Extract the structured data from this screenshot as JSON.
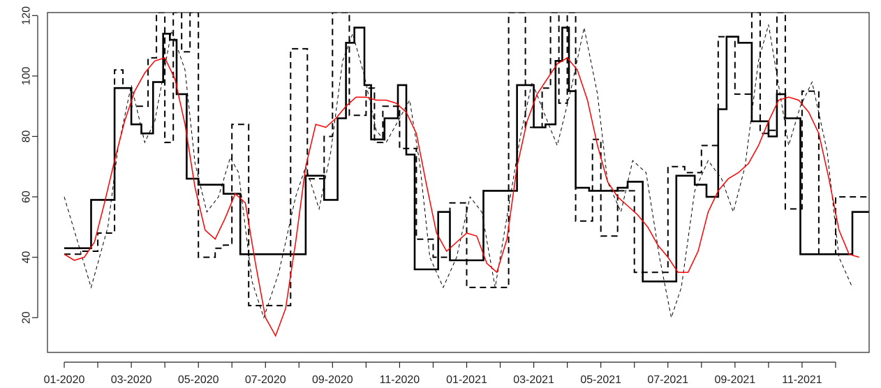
{
  "chart_data": {
    "type": "line",
    "title": "",
    "xlabel": "",
    "ylabel": "",
    "xlim": [
      0.5,
      25
    ],
    "ylim": [
      8.5,
      121
    ],
    "grid": false,
    "legend": "none",
    "x_ticks": [
      {
        "x": 1,
        "label": ""
      },
      {
        "x": 2,
        "label": ""
      },
      {
        "x": 3,
        "label": ""
      },
      {
        "x": 4,
        "label": ""
      },
      {
        "x": 5,
        "label": ""
      },
      {
        "x": 6,
        "label": ""
      },
      {
        "x": 7,
        "label": ""
      },
      {
        "x": 8,
        "label": ""
      },
      {
        "x": 9,
        "label": ""
      },
      {
        "x": 10,
        "label": ""
      },
      {
        "x": 11,
        "label": ""
      },
      {
        "x": 12,
        "label": ""
      },
      {
        "x": 13,
        "label": ""
      },
      {
        "x": 14,
        "label": ""
      },
      {
        "x": 15,
        "label": ""
      },
      {
        "x": 16,
        "label": ""
      },
      {
        "x": 17,
        "label": ""
      },
      {
        "x": 18,
        "label": ""
      },
      {
        "x": 19,
        "label": ""
      },
      {
        "x": 20,
        "label": ""
      },
      {
        "x": 21,
        "label": ""
      },
      {
        "x": 22,
        "label": ""
      },
      {
        "x": 23,
        "label": ""
      },
      {
        "x": 24,
        "label": ""
      }
    ],
    "x_tick_labels": [
      {
        "x": 1,
        "label": "01-2020"
      },
      {
        "x": 3,
        "label": "03-2020"
      },
      {
        "x": 5,
        "label": "05-2020"
      },
      {
        "x": 7,
        "label": "07-2020"
      },
      {
        "x": 9,
        "label": "09-2020"
      },
      {
        "x": 11,
        "label": "11-2020"
      },
      {
        "x": 13,
        "label": "01-2021"
      },
      {
        "x": 15,
        "label": "03-2021"
      },
      {
        "x": 17,
        "label": "05-2021"
      },
      {
        "x": 19,
        "label": "07-2021"
      },
      {
        "x": 21,
        "label": "09-2021"
      },
      {
        "x": 23,
        "label": "11-2021"
      }
    ],
    "y_ticks": [
      20,
      40,
      60,
      80,
      100,
      120
    ],
    "colors": {
      "step_solid": "#000000",
      "step_dashed": "#000000",
      "thin_dashed": "#000000",
      "smooth": "#ff0000"
    },
    "series": [
      {
        "style": "step-solid",
        "x": [
          1.0,
          1.8,
          2.5,
          3.0,
          3.3,
          3.65,
          3.95,
          4.15,
          4.35,
          4.65,
          5.0,
          5.5,
          5.75,
          6.25,
          7.0,
          7.5,
          8.2,
          8.75,
          9.15,
          9.4,
          9.65,
          9.95,
          10.15,
          10.55,
          10.95,
          11.2,
          11.45,
          11.75,
          12.15,
          12.5,
          12.95,
          13.5,
          14.5,
          15.0,
          15.35,
          15.65,
          15.85,
          16.05,
          16.25,
          16.65,
          17.0,
          17.5,
          17.8,
          18.25,
          18.75,
          19.25,
          19.8,
          20.15,
          20.5,
          20.75,
          21.1,
          21.5,
          22.0,
          22.25,
          22.5,
          22.95,
          23.5,
          24.5
        ],
        "y": [
          43,
          59,
          96,
          84,
          81,
          98,
          114,
          112,
          94,
          66,
          64,
          64,
          61,
          41,
          41,
          41,
          67,
          59,
          86,
          111,
          116,
          97,
          79,
          86,
          97,
          74,
          36,
          36,
          55,
          39,
          39,
          62,
          97,
          83,
          84,
          105,
          116,
          95,
          63,
          62,
          62,
          63,
          65,
          32,
          32,
          67,
          64,
          60,
          89,
          113,
          111,
          85,
          80,
          94,
          86,
          41,
          41,
          55
        ]
      },
      {
        "style": "step-dashed",
        "x": [
          1.0,
          1.5,
          2.0,
          2.5,
          2.75,
          3.0,
          3.5,
          3.75,
          4.0,
          4.25,
          4.5,
          4.75,
          5.0,
          5.25,
          5.5,
          5.75,
          6.0,
          6.25,
          6.5,
          6.75,
          7.0,
          7.5,
          7.75,
          8.0,
          8.25,
          8.5,
          8.75,
          9.0,
          9.25,
          9.5,
          9.75,
          10.0,
          10.25,
          10.5,
          10.75,
          11.0,
          11.25,
          11.5,
          11.75,
          12.0,
          12.25,
          12.5,
          12.75,
          13.0,
          13.5,
          14.0,
          14.25,
          14.5,
          14.75,
          15.0,
          15.25,
          15.5,
          15.75,
          16.0,
          16.25,
          16.5,
          16.75,
          17.0,
          17.25,
          17.5,
          17.75,
          18.0,
          18.25,
          18.5,
          18.75,
          19.0,
          19.25,
          19.5,
          19.75,
          20.0,
          20.25,
          20.5,
          20.75,
          21.0,
          21.25,
          21.5,
          21.75,
          22.0,
          22.25,
          22.5,
          22.75,
          23.0,
          23.25,
          23.5,
          23.75,
          24.0,
          24.25,
          24.5
        ],
        "y": [
          41,
          42,
          48,
          102,
          96,
          90,
          106,
          121,
          78,
          121,
          108,
          121,
          40,
          40,
          43,
          44,
          84,
          84,
          24,
          24,
          24,
          24,
          109,
          109,
          66,
          66,
          80,
          121,
          121,
          87,
          87,
          96,
          78,
          90,
          90,
          76,
          76,
          46,
          46,
          40,
          40,
          58,
          58,
          30,
          30,
          30,
          121,
          121,
          83,
          83,
          96,
          121,
          91,
          121,
          52,
          52,
          79,
          47,
          47,
          62,
          62,
          35,
          35,
          35,
          35,
          70,
          70,
          68,
          68,
          77,
          77,
          113,
          113,
          94,
          94,
          121,
          81,
          82,
          121,
          56,
          56,
          95,
          95,
          41,
          41,
          60,
          60,
          60
        ]
      },
      {
        "style": "thin-dashed",
        "x": [
          1.0,
          1.35,
          1.8,
          2.3,
          2.6,
          3.0,
          3.4,
          3.7,
          4.2,
          4.6,
          4.9,
          5.25,
          5.6,
          5.95,
          6.2,
          6.6,
          6.95,
          7.4,
          7.9,
          8.2,
          8.6,
          8.95,
          9.3,
          9.6,
          9.95,
          10.3,
          10.6,
          10.95,
          11.3,
          11.6,
          11.9,
          12.3,
          12.7,
          13.1,
          13.45,
          13.85,
          14.3,
          14.6,
          14.95,
          15.3,
          15.7,
          16.1,
          16.5,
          16.9,
          17.2,
          17.6,
          17.95,
          18.35,
          18.75,
          19.1,
          19.4,
          19.8,
          20.2,
          20.6,
          20.95,
          21.3,
          21.7,
          22.0,
          22.3,
          22.6,
          22.95,
          23.3,
          23.75,
          24.1,
          24.5
        ],
        "y": [
          60,
          47,
          30,
          50,
          76,
          97,
          78,
          85,
          115,
          102,
          71,
          55,
          60,
          73,
          68,
          32,
          20,
          35,
          60,
          70,
          56,
          75,
          105,
          114,
          100,
          82,
          78,
          85,
          92,
          71,
          40,
          30,
          40,
          60,
          55,
          30,
          60,
          80,
          98,
          88,
          77,
          95,
          116,
          94,
          65,
          55,
          72,
          68,
          40,
          20,
          30,
          62,
          72,
          66,
          55,
          70,
          105,
          117,
          97,
          77,
          90,
          98,
          75,
          40,
          30
        ]
      },
      {
        "style": "smooth",
        "x": [
          1.0,
          1.3,
          1.6,
          1.9,
          2.2,
          2.5,
          2.8,
          3.1,
          3.4,
          3.7,
          4.0,
          4.3,
          4.6,
          4.9,
          5.2,
          5.5,
          5.8,
          6.1,
          6.4,
          6.7,
          7.0,
          7.3,
          7.6,
          7.9,
          8.2,
          8.5,
          8.8,
          9.1,
          9.4,
          9.7,
          10.0,
          10.3,
          10.6,
          10.9,
          11.2,
          11.5,
          11.8,
          12.1,
          12.4,
          12.7,
          13.0,
          13.3,
          13.6,
          13.9,
          14.2,
          14.5,
          14.8,
          15.1,
          15.4,
          15.7,
          16.0,
          16.3,
          16.6,
          16.9,
          17.2,
          17.5,
          17.8,
          18.1,
          18.4,
          18.7,
          19.0,
          19.3,
          19.6,
          19.9,
          20.2,
          20.5,
          20.8,
          21.1,
          21.4,
          21.7,
          22.0,
          22.3,
          22.6,
          22.9,
          23.2,
          23.5,
          23.8,
          24.1,
          24.4,
          24.7
        ],
        "y": [
          41,
          39,
          40,
          45,
          58,
          72,
          85,
          95,
          101,
          105,
          106,
          99,
          84,
          63,
          49,
          46,
          53,
          61,
          58,
          38,
          20,
          14,
          23,
          45,
          70,
          84,
          83,
          86,
          90,
          93,
          93,
          92,
          92,
          91,
          88,
          81,
          64,
          48,
          42,
          45,
          48,
          47,
          38,
          35,
          46,
          70,
          85,
          94,
          99,
          104,
          106,
          102,
          92,
          77,
          65,
          60,
          57,
          54,
          50,
          44,
          40,
          35,
          35,
          42,
          55,
          62,
          66,
          68,
          71,
          77,
          85,
          92,
          93,
          92,
          88,
          81,
          66,
          49,
          41,
          40
        ]
      }
    ]
  }
}
